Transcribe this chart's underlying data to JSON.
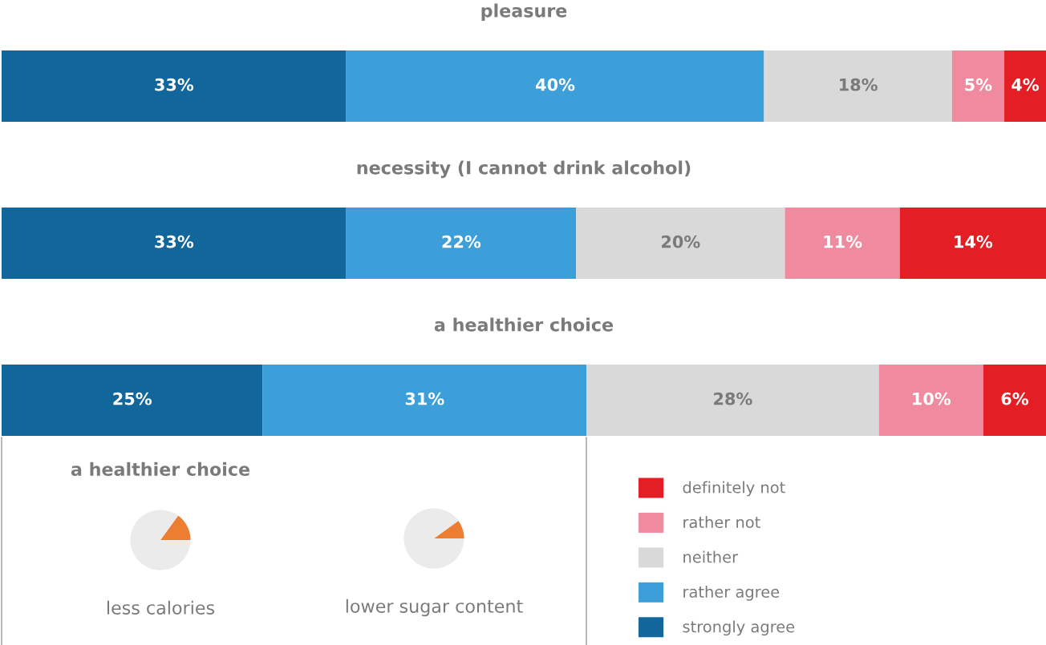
{
  "chart_data": [
    {
      "type": "bar",
      "orientation": "horizontal",
      "stacked": true,
      "title": "pleasure",
      "categories": [
        null
      ],
      "xlim": [
        0,
        100
      ],
      "tick_labels": false,
      "series": [
        {
          "color": "#11669c",
          "values": [
            33
          ],
          "value_labels": [
            "33%"
          ]
        },
        {
          "color": "#3d9fd9",
          "values": [
            40
          ],
          "value_labels": [
            "40%"
          ]
        },
        {
          "color": "#d9d9d9",
          "values": [
            18
          ],
          "value_labels": [
            "18%"
          ]
        },
        {
          "color": "#f08a9f",
          "values": [
            5
          ],
          "value_labels": [
            "5%"
          ]
        },
        {
          "color": "#e31e24",
          "values": [
            4
          ],
          "value_labels": [
            "4%"
          ]
        }
      ]
    },
    {
      "type": "bar",
      "orientation": "horizontal",
      "stacked": true,
      "title": "necessity (I cannot drink alcohol)",
      "categories": [
        null
      ],
      "xlim": [
        0,
        100
      ],
      "tick_labels": false,
      "series": [
        {
          "color": "#11669c",
          "values": [
            33
          ],
          "value_labels": [
            "33%"
          ]
        },
        {
          "color": "#3d9fd9",
          "values": [
            22
          ],
          "value_labels": [
            "22%"
          ]
        },
        {
          "color": "#d9d9d9",
          "values": [
            20
          ],
          "value_labels": [
            "20%"
          ]
        },
        {
          "color": "#f08a9f",
          "values": [
            11
          ],
          "value_labels": [
            "11%"
          ]
        },
        {
          "color": "#e31e24",
          "values": [
            14
          ],
          "value_labels": [
            "14%"
          ]
        }
      ]
    },
    {
      "type": "bar",
      "orientation": "horizontal",
      "stacked": true,
      "title": "a healthier choice",
      "categories": [
        null
      ],
      "xlim": [
        0,
        100
      ],
      "tick_labels": false,
      "legend": "bottom right",
      "series": [
        {
          "name": "strongly agree",
          "color": "#11669c",
          "values": [
            25
          ],
          "value_labels": [
            "25%"
          ]
        },
        {
          "name": "rather agree",
          "color": "#3d9fd9",
          "values": [
            31
          ],
          "value_labels": [
            "31%"
          ]
        },
        {
          "name": "neither",
          "color": "#d9d9d9",
          "values": [
            28
          ],
          "value_labels": [
            "28%"
          ]
        },
        {
          "name": "rather not",
          "color": "#f08a9f",
          "values": [
            10
          ],
          "value_labels": [
            "10%"
          ]
        },
        {
          "name": "definitely not",
          "color": "#e31e24",
          "values": [
            6
          ],
          "value_labels": [
            "6%"
          ]
        }
      ]
    },
    {
      "type": "pie",
      "title": "a healthier choice",
      "xlabel": "less calories",
      "categories": [
        null,
        null
      ],
      "values": [
        15,
        85
      ],
      "colors": [
        "#ed7d31",
        "#ebebeb"
      ]
    },
    {
      "type": "pie",
      "xlabel": "lower sugar content",
      "categories": [
        null,
        null
      ],
      "values": [
        10,
        90
      ],
      "colors": [
        "#ed7d31",
        "#ebebeb"
      ]
    }
  ]
}
